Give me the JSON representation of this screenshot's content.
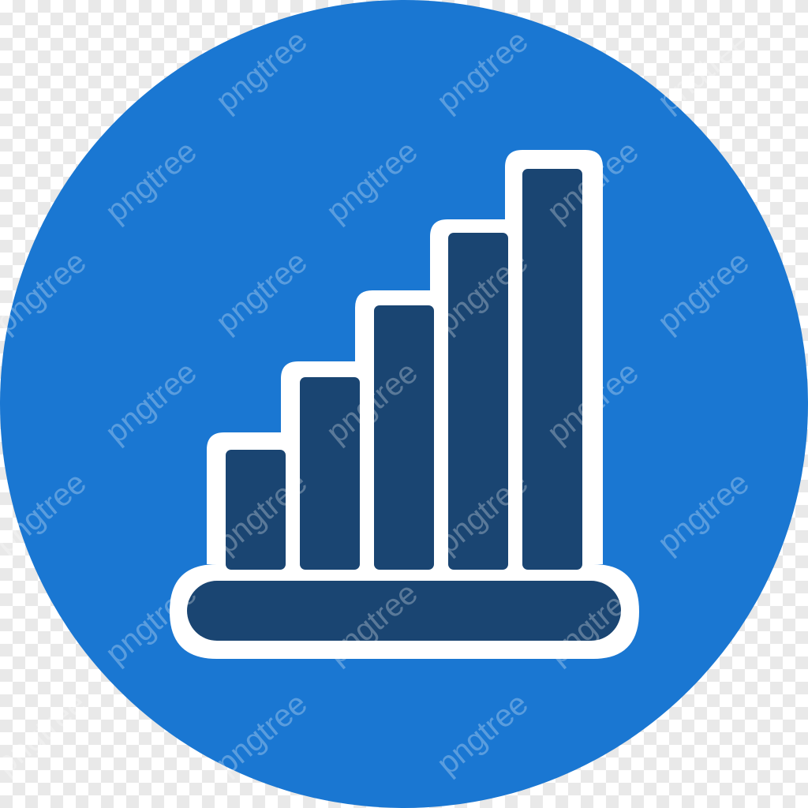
{
  "icon": {
    "name": "bar-chart-growth-icon",
    "bar_count": 5,
    "bar_levels": [
      0.3,
      0.48,
      0.66,
      0.84,
      1.0
    ]
  },
  "watermark": {
    "text": "pngtree"
  },
  "colors": {
    "circle": "#1a77d2",
    "bar_fill": "#1a4572",
    "outline": "#ffffff"
  }
}
